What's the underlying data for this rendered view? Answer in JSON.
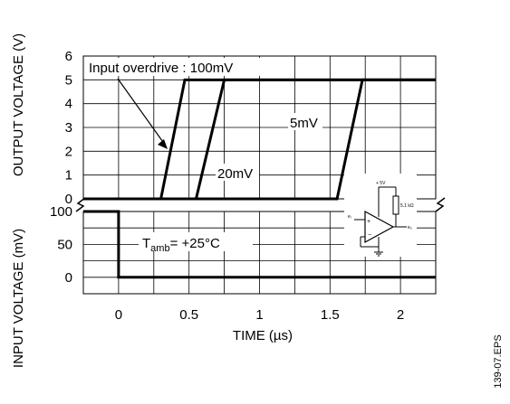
{
  "chart_data": {
    "type": "line",
    "xlabel": "TIME (µs)",
    "xlim": [
      -0.25,
      2.25
    ],
    "xticks": [
      "0",
      "0.5",
      "1",
      "1.5",
      "2"
    ],
    "xtick_values": [
      0,
      0.5,
      1,
      1.5,
      2
    ],
    "grid": true,
    "upper": {
      "ylabel": "OUTPUT VOLTAGE (V)",
      "ylim": [
        0,
        6
      ],
      "yticks": [
        "0",
        "1",
        "2",
        "3",
        "4",
        "5",
        "6"
      ],
      "ytick_values": [
        0,
        1,
        2,
        3,
        4,
        5,
        6
      ],
      "series": [
        {
          "name": "100mV",
          "x": [
            -0.25,
            0.3,
            0.47,
            2.25
          ],
          "y": [
            0,
            0,
            5,
            5
          ]
        },
        {
          "name": "20mV",
          "x": [
            -0.25,
            0.55,
            0.75,
            2.25
          ],
          "y": [
            0,
            0,
            5,
            5
          ]
        },
        {
          "name": "5mV",
          "x": [
            -0.25,
            1.55,
            1.73,
            2.25
          ],
          "y": [
            0,
            0,
            5,
            5
          ]
        }
      ]
    },
    "lower": {
      "ylabel": "INPUT VOLTAGE (mV)",
      "ylim": [
        -25,
        100
      ],
      "yticks": [
        "0",
        "50",
        "100"
      ],
      "ytick_values": [
        0,
        50,
        100
      ],
      "series": [
        {
          "name": "Input",
          "x": [
            -0.25,
            0,
            0,
            2.25
          ],
          "y": [
            100,
            100,
            0,
            0
          ]
        }
      ]
    },
    "annotations": {
      "overdrive_label": "Input overdrive : 100mV",
      "label_20mv": "20mV",
      "label_5mv": "5mV",
      "tamb_prefix": "T",
      "tamb_sub": "amb",
      "tamb_suffix": "= +25°C"
    },
    "schematic": {
      "supply": "+ 5V",
      "resistor": "5.1 kΩ",
      "input": "eᵢ",
      "output": "eₒ"
    }
  },
  "figure_id": "139-07.EPS"
}
